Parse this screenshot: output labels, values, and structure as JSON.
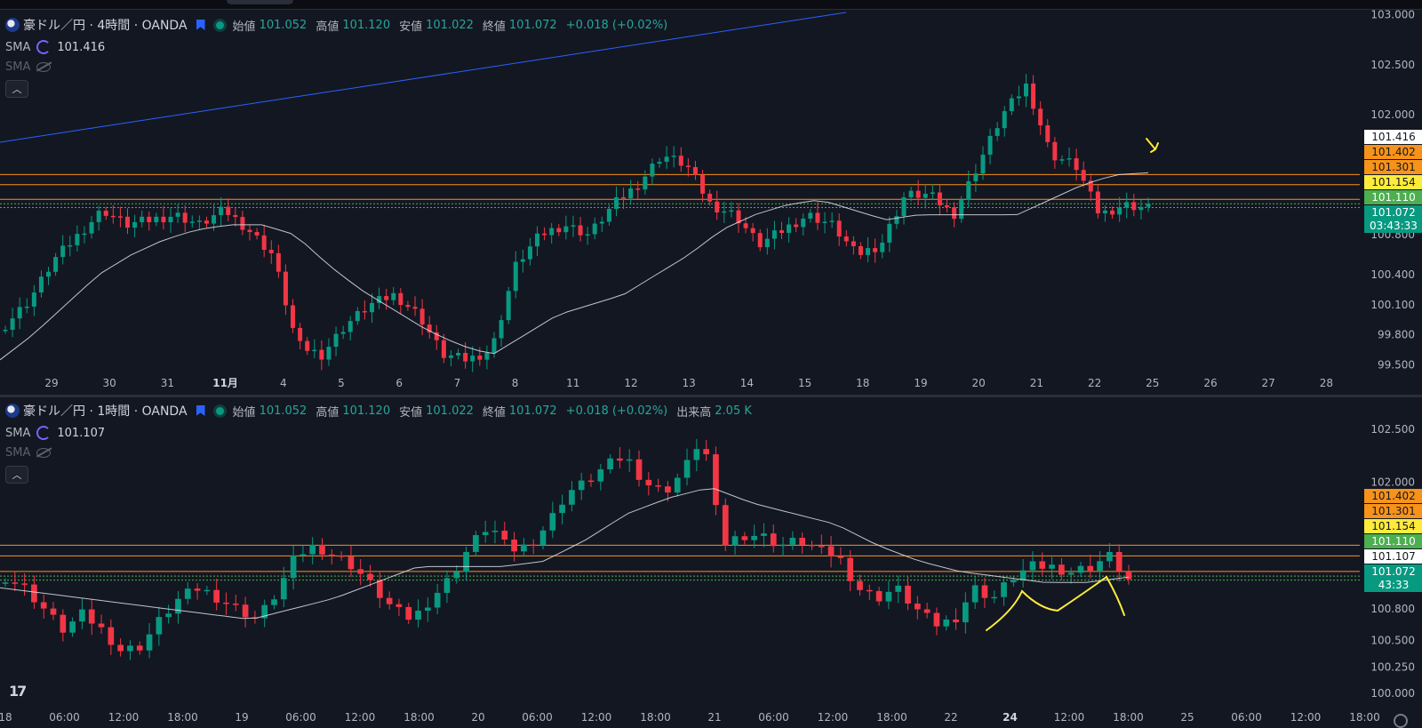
{
  "top_chart": {
    "symbol": "豪ドル／円 · 4時間 · OANDA",
    "ohlc": [
      {
        "label": "始値",
        "value": "101.052"
      },
      {
        "label": "高値",
        "value": "101.120"
      },
      {
        "label": "安値",
        "value": "101.022"
      },
      {
        "label": "終値",
        "value": "101.072"
      }
    ],
    "change": "+0.018 (+0.02%)",
    "volume_label": "",
    "volume_value": "",
    "sma_rows": [
      {
        "name": "SMA",
        "value": "101.416",
        "visible": true
      },
      {
        "name": "SMA",
        "value": "",
        "visible": false
      }
    ],
    "collapse_icon": "chevron-up-icon",
    "price_axis": [
      "103.000",
      "102.500",
      "102.000",
      "100.800",
      "100.400",
      "100.100",
      "99.800",
      "99.500"
    ],
    "price_badges": [
      {
        "text": "101.416",
        "bg": "#ffffff",
        "fg": "#131722"
      },
      {
        "text": "101.402",
        "bg": "#f7931a",
        "fg": "#131722"
      },
      {
        "text": "101.301",
        "bg": "#f7931a",
        "fg": "#131722"
      },
      {
        "text": "101.154",
        "bg": "#ffeb3b",
        "fg": "#131722"
      },
      {
        "text": "101.110",
        "bg": "#4caf50",
        "fg": "#ffffff"
      },
      {
        "text": "101.072",
        "bg": "#089981",
        "fg": "#ffffff",
        "sub": "03:43:33"
      }
    ],
    "time_axis": [
      "29",
      "30",
      "31",
      "11月",
      "4",
      "5",
      "6",
      "7",
      "8",
      "11",
      "12",
      "13",
      "14",
      "15",
      "18",
      "19",
      "20",
      "21",
      "22",
      "25",
      "26",
      "27",
      "28"
    ]
  },
  "bottom_chart": {
    "symbol": "豪ドル／円 · 1時間 · OANDA",
    "ohlc": [
      {
        "label": "始値",
        "value": "101.052"
      },
      {
        "label": "高値",
        "value": "101.120"
      },
      {
        "label": "安値",
        "value": "101.022"
      },
      {
        "label": "終値",
        "value": "101.072"
      }
    ],
    "change": "+0.018 (+0.02%)",
    "volume_label": "出来高",
    "volume_value": "2.05 K",
    "sma_rows": [
      {
        "name": "SMA",
        "value": "101.107",
        "visible": true
      },
      {
        "name": "SMA",
        "value": "",
        "visible": false
      }
    ],
    "collapse_icon": "chevron-up-icon",
    "price_axis": [
      "102.500",
      "102.000",
      "100.800",
      "100.500",
      "100.250",
      "100.000"
    ],
    "price_badges": [
      {
        "text": "101.402",
        "bg": "#f7931a",
        "fg": "#131722"
      },
      {
        "text": "101.301",
        "bg": "#f7931a",
        "fg": "#131722"
      },
      {
        "text": "101.154",
        "bg": "#ffeb3b",
        "fg": "#131722"
      },
      {
        "text": "101.110",
        "bg": "#4caf50",
        "fg": "#ffffff"
      },
      {
        "text": "101.107",
        "bg": "#ffffff",
        "fg": "#131722"
      },
      {
        "text": "101.072",
        "bg": "#089981",
        "fg": "#ffffff",
        "sub": "43:33"
      }
    ],
    "time_axis": [
      "18",
      "06:00",
      "12:00",
      "18:00",
      "19",
      "06:00",
      "12:00",
      "18:00",
      "20",
      "06:00",
      "12:00",
      "18:00",
      "21",
      "06:00",
      "12:00",
      "18:00",
      "22",
      "24",
      "12:00",
      "18:00",
      "25",
      "06:00",
      "12:00",
      "18:00"
    ]
  },
  "logo_text": "17",
  "colors": {
    "up": "#089981",
    "down": "#f23645",
    "sma": "#e0e3eb",
    "trend": "#2962ff",
    "annotation": "#ffeb3b",
    "hline_orange": "#f7931a"
  },
  "chart_data": [
    {
      "type": "candlestick",
      "title": "豪ドル／円 · 4時間 · OANDA",
      "ylim": [
        99.45,
        103.05
      ],
      "horizontal_levels": [
        101.402,
        101.301,
        101.154,
        101.11,
        101.072
      ],
      "last": {
        "open": 101.052,
        "high": 101.12,
        "low": 101.022,
        "close": 101.072
      },
      "sma_last": 101.416,
      "close_path": [
        99.9,
        100.15,
        100.55,
        100.8,
        101.05,
        100.9,
        100.95,
        101.0,
        100.9,
        101.05,
        100.85,
        100.6,
        99.7,
        99.6,
        99.9,
        100.1,
        100.2,
        100.0,
        99.6,
        99.55,
        99.65,
        100.5,
        100.8,
        100.9,
        100.8,
        101.1,
        101.3,
        101.6,
        101.5,
        101.1,
        101.0,
        100.7,
        100.85,
        101.0,
        100.9,
        100.6,
        100.7,
        101.2,
        101.2,
        101.0,
        101.5,
        102.0,
        102.3,
        101.6,
        101.5,
        101.0,
        101.1,
        101.07
      ],
      "sma_path": [
        99.55,
        99.8,
        100.1,
        100.4,
        100.6,
        100.75,
        100.85,
        100.9,
        100.9,
        100.8,
        100.5,
        100.25,
        100.05,
        99.85,
        99.7,
        99.6,
        99.8,
        100.0,
        100.1,
        100.2,
        100.4,
        100.6,
        100.85,
        101.0,
        101.1,
        101.15,
        101.05,
        100.95,
        101.0,
        101.0,
        101.0,
        101.0,
        101.15,
        101.3,
        101.4,
        101.42
      ]
    },
    {
      "type": "candlestick",
      "title": "豪ドル／円 · 1時間 · OANDA",
      "ylim": [
        99.9,
        102.65
      ],
      "horizontal_levels": [
        101.402,
        101.301,
        101.154,
        101.11,
        101.072
      ],
      "last": {
        "open": 101.052,
        "high": 101.12,
        "low": 101.022,
        "close": 101.072
      },
      "volume": "2.05 K",
      "sma_last": 101.107,
      "close_path": [
        101.1,
        101.0,
        100.8,
        100.6,
        100.75,
        100.6,
        100.4,
        100.45,
        100.7,
        100.9,
        101.0,
        100.9,
        100.8,
        100.7,
        100.95,
        101.3,
        101.4,
        101.3,
        101.2,
        101.0,
        100.8,
        100.7,
        100.9,
        101.1,
        101.4,
        101.6,
        101.35,
        101.4,
        101.6,
        101.9,
        102.0,
        102.15,
        102.25,
        102.0,
        101.9,
        102.1,
        102.45,
        101.4,
        101.5,
        101.5,
        101.4,
        101.45,
        101.35,
        101.3,
        101.0,
        100.9,
        101.0,
        100.8,
        100.65,
        100.7,
        101.0,
        100.9,
        101.1,
        101.2,
        101.2,
        101.15,
        101.2,
        101.3,
        101.07
      ],
      "sma_path": [
        101.0,
        100.95,
        100.9,
        100.85,
        100.8,
        100.75,
        100.7,
        100.8,
        100.9,
        101.05,
        101.2,
        101.2,
        101.2,
        101.25,
        101.45,
        101.7,
        101.85,
        101.95,
        101.8,
        101.7,
        101.6,
        101.4,
        101.25,
        101.15,
        101.1,
        101.05,
        101.05,
        101.1
      ]
    }
  ]
}
